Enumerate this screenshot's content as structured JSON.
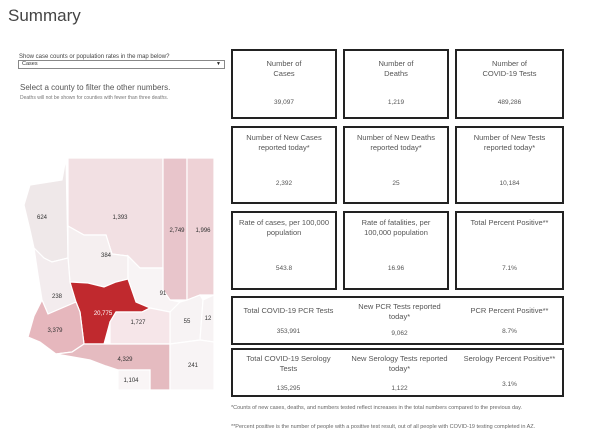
{
  "page": {
    "title": "Summary"
  },
  "filter": {
    "label": "Show case counts or population rates in the map below?",
    "selected": "Cases"
  },
  "hint": {
    "main": "Select a county to filter the other numbers.",
    "sub": "Deaths will not be shown for counties with fewer than three deaths."
  },
  "map": {
    "counties": [
      {
        "id": "mohave",
        "value": "624"
      },
      {
        "id": "coconino",
        "value": "1,393"
      },
      {
        "id": "navajo",
        "value": "2,749"
      },
      {
        "id": "apache",
        "value": "1,996"
      },
      {
        "id": "yavapai",
        "value": "384"
      },
      {
        "id": "la-paz",
        "value": "238"
      },
      {
        "id": "maricopa",
        "value": "20,775"
      },
      {
        "id": "gila",
        "value": "91"
      },
      {
        "id": "graham",
        "value": "55"
      },
      {
        "id": "greenlee",
        "value": "12"
      },
      {
        "id": "yuma",
        "value": "3,379"
      },
      {
        "id": "pinal",
        "value": "1,727"
      },
      {
        "id": "pima",
        "value": "4,329"
      },
      {
        "id": "cochise",
        "value": "241"
      },
      {
        "id": "santa-cruz",
        "value": "1,104"
      }
    ]
  },
  "cards": {
    "cases": {
      "label": "Number of\nCases",
      "value": "39,097"
    },
    "deaths": {
      "label": "Number of\nDeaths",
      "value": "1,219"
    },
    "tests": {
      "label": "Number of\nCOVID-19 Tests",
      "value": "489,286"
    },
    "new_cases": {
      "label": "Number of New Cases\nreported today*",
      "value": "2,392"
    },
    "new_deaths": {
      "label": "Number of New Deaths\nreported today*",
      "value": "25"
    },
    "new_tests": {
      "label": "Number of New Tests\nreported today*",
      "value": "10,184"
    },
    "case_rate": {
      "label": "Rate of cases, per 100,000\npopulation",
      "value": "543.8"
    },
    "fatality_rate": {
      "label": "Rate of fatalities, per\n100,000 population",
      "value": "16.96"
    },
    "pct_positive": {
      "label": "Total Percent Positive**",
      "value": "7.1%"
    },
    "pcr_tests": {
      "label": "Total COVID-19 PCR Tests",
      "value": "353,991"
    },
    "new_pcr": {
      "label": "New PCR Tests reported\ntoday*",
      "value": "9,062"
    },
    "pcr_pct": {
      "label": "PCR Percent Positive**",
      "value": "8.7%"
    },
    "serology_tests": {
      "label": "Total COVID-19 Serology\nTests",
      "value": "135,295"
    },
    "new_serology": {
      "label": "New Serology Tests reported\ntoday*",
      "value": "1,122"
    },
    "serology_pct": {
      "label": "Serology Percent Positive**",
      "value": "3.1%"
    }
  },
  "footnotes": {
    "one": "*Counts of new cases, deaths, and numbers tested reflect increases in the total numbers compared to the previous day.",
    "two": "**Percent positive is the number of people with a positive test result, out of all people with COVID-19 testing completed in AZ."
  }
}
